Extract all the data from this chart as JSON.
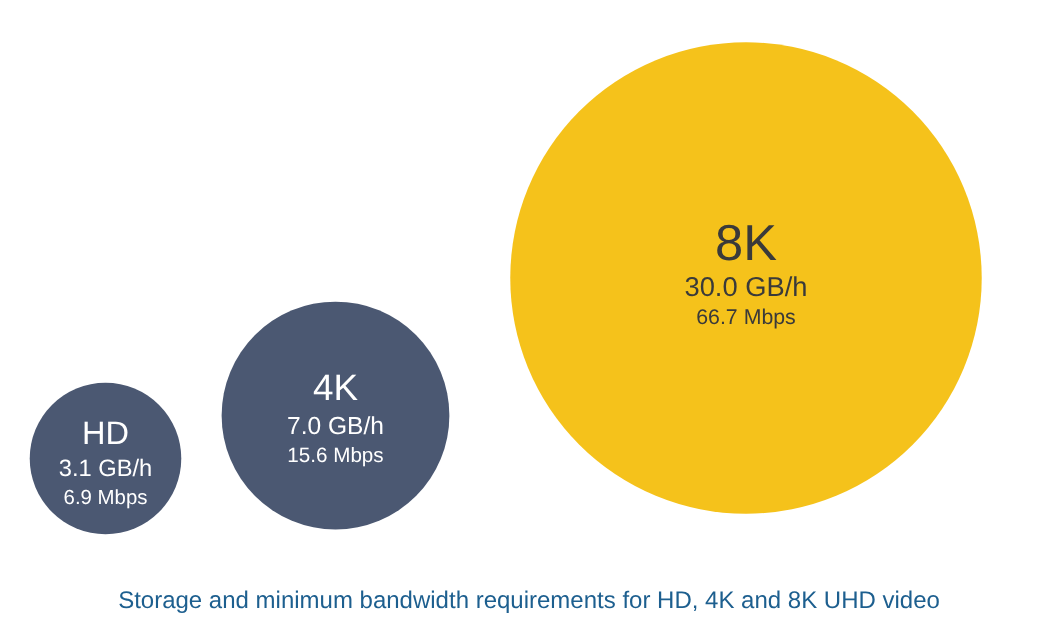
{
  "chart_data": {
    "type": "other",
    "categories": [
      "HD",
      "4K",
      "8K"
    ],
    "series": [
      {
        "colors": [
          "#4b5872",
          "#4b5872",
          "#f5c21b"
        ],
        "values": [
          3.1,
          7.0,
          30.0
        ],
        "value_labels": [
          "3.1 GB/h",
          "7.0 GB/h",
          "30.0 GB/h"
        ]
      },
      {
        "values": [
          6.9,
          15.6,
          66.7
        ],
        "value_labels": [
          "6.9 Mbps",
          "15.6 Mbps",
          "66.7 Mbps"
        ]
      }
    ],
    "annotations": [
      "Storage and minimum bandwidth requirements for HD, 4K and 8K UHD video"
    ]
  }
}
